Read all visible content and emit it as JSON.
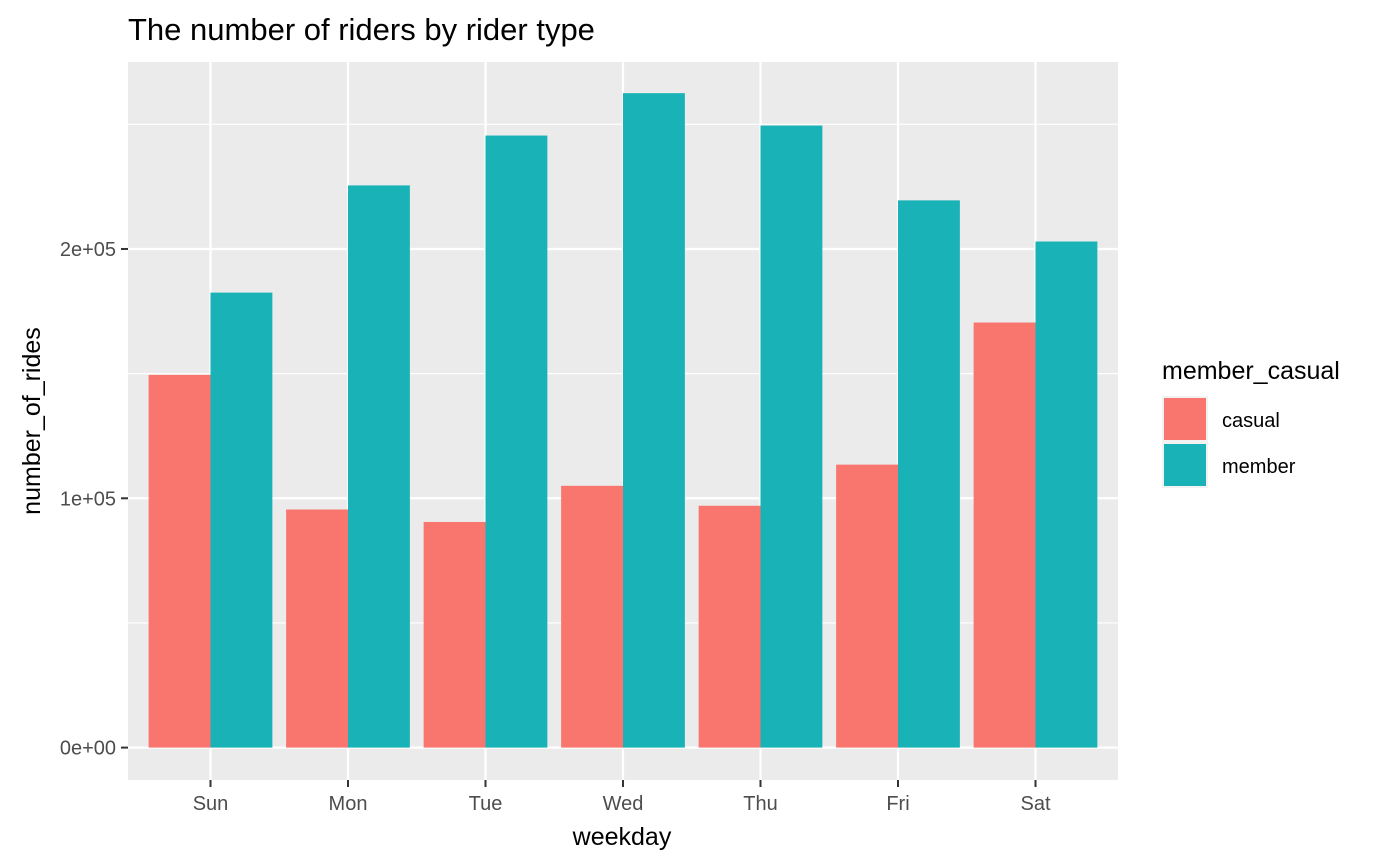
{
  "chart_data": {
    "type": "bar",
    "title": "The number of riders by rider type",
    "xlabel": "weekday",
    "ylabel": "number_of_rides",
    "categories": [
      "Sun",
      "Mon",
      "Tue",
      "Wed",
      "Thu",
      "Fri",
      "Sat"
    ],
    "series": [
      {
        "name": "casual",
        "color": "#F8766D",
        "values": [
          149500,
          95500,
          90500,
          105000,
          97000,
          113500,
          170500
        ]
      },
      {
        "name": "member",
        "color": "#00BFC4",
        "values": [
          182500,
          225500,
          245500,
          262500,
          249500,
          219500,
          203000
        ]
      }
    ],
    "ylim": [
      -13000,
      275000
    ],
    "yticks": [
      0,
      100000,
      200000
    ],
    "ytick_labels": [
      "0e+00",
      "1e+05",
      "2e+05"
    ],
    "grid": true,
    "legend": {
      "title": "member_casual",
      "position": "right"
    },
    "panel_background": "#EBEBEB",
    "bar_colors": {
      "casual": "#F8766D",
      "member": "#19B3B7"
    }
  }
}
